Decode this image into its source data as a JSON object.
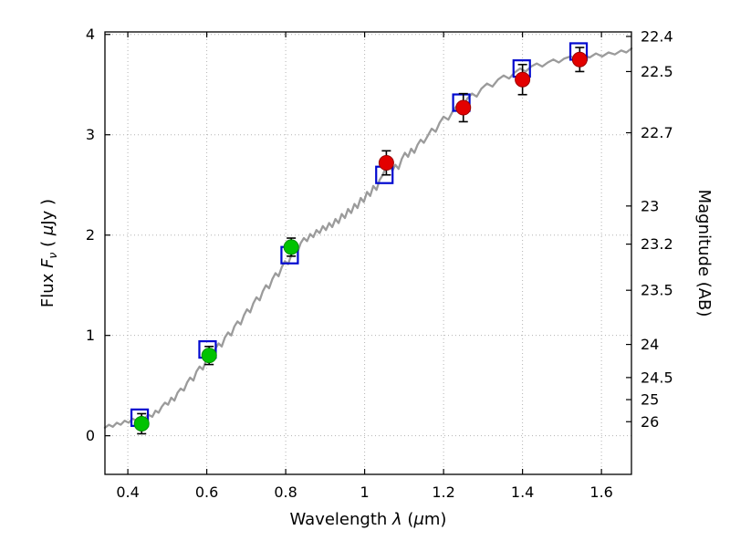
{
  "chart_data": {
    "type": "line",
    "title": "",
    "xlabel_runs": [
      {
        "t": "Wavelength  "
      },
      {
        "t": "λ",
        "i": true
      },
      {
        "t": " ("
      },
      {
        "t": "μ",
        "i": true
      },
      {
        "t": "m)"
      }
    ],
    "ylabel_left_runs": [
      {
        "t": "Flux  "
      },
      {
        "t": "F",
        "i": true
      },
      {
        "t": "ν",
        "i": true,
        "sub": true
      },
      {
        "t": " ( "
      },
      {
        "t": "μ",
        "i": true
      },
      {
        "t": "Jy )"
      }
    ],
    "ylabel_right": "Magnitude (AB)",
    "xlim": [
      0.342,
      1.676
    ],
    "ylim": [
      -0.385,
      4.025
    ],
    "xticks": [
      {
        "v": 0.4,
        "label": "0.4"
      },
      {
        "v": 0.6,
        "label": "0.6"
      },
      {
        "v": 0.8,
        "label": "0.8"
      },
      {
        "v": 1,
        "label": "1"
      },
      {
        "v": 1.2,
        "label": "1.2"
      },
      {
        "v": 1.4,
        "label": "1.4"
      },
      {
        "v": 1.6,
        "label": "1.6"
      }
    ],
    "yticks_left": [
      {
        "v": 0,
        "label": "0"
      },
      {
        "v": 1,
        "label": "1"
      },
      {
        "v": 2,
        "label": "2"
      },
      {
        "v": 3,
        "label": "3"
      },
      {
        "v": 4,
        "label": "4"
      }
    ],
    "yticks_right": [
      {
        "flux": 3.98,
        "label": "22.4"
      },
      {
        "flux": 3.63,
        "label": "22.5"
      },
      {
        "flux": 3.02,
        "label": "22.7"
      },
      {
        "flux": 2.29,
        "label": "23"
      },
      {
        "flux": 1.91,
        "label": "23.2"
      },
      {
        "flux": 1.45,
        "label": "23.5"
      },
      {
        "flux": 0.91,
        "label": "24"
      },
      {
        "flux": 0.58,
        "label": "24.5"
      },
      {
        "flux": 0.36,
        "label": "25"
      },
      {
        "flux": 0.14,
        "label": "26"
      }
    ],
    "grid": {
      "color": "#b3b3b3"
    },
    "model_spectrum": {
      "name": "model-spectrum",
      "color": "#9b9b9b",
      "width": 2.3,
      "points": [
        [
          0.342,
          0.08
        ],
        [
          0.352,
          0.11
        ],
        [
          0.362,
          0.09
        ],
        [
          0.372,
          0.13
        ],
        [
          0.382,
          0.11
        ],
        [
          0.392,
          0.15
        ],
        [
          0.402,
          0.13
        ],
        [
          0.412,
          0.17
        ],
        [
          0.422,
          0.15
        ],
        [
          0.432,
          0.19
        ],
        [
          0.442,
          0.17
        ],
        [
          0.452,
          0.21
        ],
        [
          0.462,
          0.19
        ],
        [
          0.47,
          0.25
        ],
        [
          0.478,
          0.23
        ],
        [
          0.486,
          0.29
        ],
        [
          0.494,
          0.33
        ],
        [
          0.502,
          0.31
        ],
        [
          0.51,
          0.38
        ],
        [
          0.518,
          0.35
        ],
        [
          0.526,
          0.43
        ],
        [
          0.534,
          0.47
        ],
        [
          0.542,
          0.45
        ],
        [
          0.55,
          0.53
        ],
        [
          0.558,
          0.58
        ],
        [
          0.566,
          0.55
        ],
        [
          0.574,
          0.64
        ],
        [
          0.582,
          0.69
        ],
        [
          0.59,
          0.66
        ],
        [
          0.598,
          0.75
        ],
        [
          0.606,
          0.8
        ],
        [
          0.614,
          0.78
        ],
        [
          0.622,
          0.87
        ],
        [
          0.63,
          0.92
        ],
        [
          0.638,
          0.89
        ],
        [
          0.646,
          0.98
        ],
        [
          0.654,
          1.03
        ],
        [
          0.662,
          1.0
        ],
        [
          0.67,
          1.09
        ],
        [
          0.678,
          1.14
        ],
        [
          0.686,
          1.11
        ],
        [
          0.694,
          1.2
        ],
        [
          0.702,
          1.26
        ],
        [
          0.71,
          1.23
        ],
        [
          0.718,
          1.32
        ],
        [
          0.726,
          1.38
        ],
        [
          0.734,
          1.35
        ],
        [
          0.742,
          1.44
        ],
        [
          0.75,
          1.5
        ],
        [
          0.758,
          1.47
        ],
        [
          0.766,
          1.56
        ],
        [
          0.774,
          1.62
        ],
        [
          0.782,
          1.59
        ],
        [
          0.79,
          1.68
        ],
        [
          0.798,
          1.74
        ],
        [
          0.806,
          1.71
        ],
        [
          0.814,
          1.8
        ],
        [
          0.822,
          1.86
        ],
        [
          0.83,
          1.83
        ],
        [
          0.838,
          1.92
        ],
        [
          0.846,
          1.97
        ],
        [
          0.854,
          1.94
        ],
        [
          0.862,
          2.01
        ],
        [
          0.87,
          1.98
        ],
        [
          0.878,
          2.05
        ],
        [
          0.886,
          2.02
        ],
        [
          0.894,
          2.09
        ],
        [
          0.902,
          2.05
        ],
        [
          0.91,
          2.12
        ],
        [
          0.918,
          2.08
        ],
        [
          0.926,
          2.16
        ],
        [
          0.934,
          2.12
        ],
        [
          0.942,
          2.21
        ],
        [
          0.95,
          2.17
        ],
        [
          0.958,
          2.26
        ],
        [
          0.966,
          2.22
        ],
        [
          0.974,
          2.31
        ],
        [
          0.982,
          2.27
        ],
        [
          0.99,
          2.37
        ],
        [
          0.998,
          2.33
        ],
        [
          1.006,
          2.43
        ],
        [
          1.014,
          2.39
        ],
        [
          1.022,
          2.49
        ],
        [
          1.03,
          2.45
        ],
        [
          1.038,
          2.55
        ],
        [
          1.046,
          2.6
        ],
        [
          1.054,
          2.68
        ],
        [
          1.062,
          2.74
        ],
        [
          1.07,
          2.64
        ],
        [
          1.078,
          2.7
        ],
        [
          1.086,
          2.66
        ],
        [
          1.094,
          2.76
        ],
        [
          1.102,
          2.82
        ],
        [
          1.11,
          2.78
        ],
        [
          1.118,
          2.86
        ],
        [
          1.126,
          2.82
        ],
        [
          1.134,
          2.9
        ],
        [
          1.142,
          2.95
        ],
        [
          1.15,
          2.92
        ],
        [
          1.16,
          2.99
        ],
        [
          1.17,
          3.06
        ],
        [
          1.18,
          3.03
        ],
        [
          1.19,
          3.12
        ],
        [
          1.2,
          3.18
        ],
        [
          1.212,
          3.15
        ],
        [
          1.224,
          3.24
        ],
        [
          1.236,
          3.3
        ],
        [
          1.248,
          3.27
        ],
        [
          1.26,
          3.36
        ],
        [
          1.272,
          3.41
        ],
        [
          1.284,
          3.38
        ],
        [
          1.296,
          3.46
        ],
        [
          1.31,
          3.51
        ],
        [
          1.324,
          3.48
        ],
        [
          1.338,
          3.55
        ],
        [
          1.352,
          3.59
        ],
        [
          1.366,
          3.56
        ],
        [
          1.38,
          3.62
        ],
        [
          1.394,
          3.66
        ],
        [
          1.408,
          3.63
        ],
        [
          1.422,
          3.68
        ],
        [
          1.436,
          3.71
        ],
        [
          1.45,
          3.68
        ],
        [
          1.464,
          3.72
        ],
        [
          1.478,
          3.75
        ],
        [
          1.492,
          3.72
        ],
        [
          1.506,
          3.76
        ],
        [
          1.522,
          3.78
        ],
        [
          1.538,
          3.75
        ],
        [
          1.554,
          3.79
        ],
        [
          1.57,
          3.77
        ],
        [
          1.586,
          3.81
        ],
        [
          1.602,
          3.78
        ],
        [
          1.618,
          3.82
        ],
        [
          1.634,
          3.8
        ],
        [
          1.65,
          3.84
        ],
        [
          1.663,
          3.82
        ],
        [
          1.676,
          3.86
        ]
      ]
    },
    "series": [
      {
        "name": "observed-optical",
        "marker": "circle",
        "fill": "#00c300",
        "edge": "#008f00",
        "errbar_color": "#000000",
        "points": [
          {
            "x": 0.435,
            "y": 0.12,
            "yerr": 0.1
          },
          {
            "x": 0.606,
            "y": 0.8,
            "yerr": 0.09
          },
          {
            "x": 0.814,
            "y": 1.88,
            "yerr": 0.09
          }
        ]
      },
      {
        "name": "observed-infrared",
        "marker": "circle",
        "fill": "#e30000",
        "edge": "#9a0000",
        "errbar_color": "#000000",
        "points": [
          {
            "x": 1.055,
            "y": 2.72,
            "yerr": 0.12
          },
          {
            "x": 1.25,
            "y": 3.27,
            "yerr": 0.14
          },
          {
            "x": 1.4,
            "y": 3.55,
            "yerr": 0.15
          },
          {
            "x": 1.545,
            "y": 3.75,
            "yerr": 0.12
          }
        ]
      },
      {
        "name": "model-photometry",
        "marker": "open-square",
        "edge": "#0008cf",
        "points": [
          {
            "x": 0.43,
            "y": 0.18
          },
          {
            "x": 0.602,
            "y": 0.86
          },
          {
            "x": 0.81,
            "y": 1.8
          },
          {
            "x": 1.05,
            "y": 2.6
          },
          {
            "x": 1.245,
            "y": 3.32
          },
          {
            "x": 1.398,
            "y": 3.66
          },
          {
            "x": 1.542,
            "y": 3.83
          }
        ]
      }
    ]
  }
}
